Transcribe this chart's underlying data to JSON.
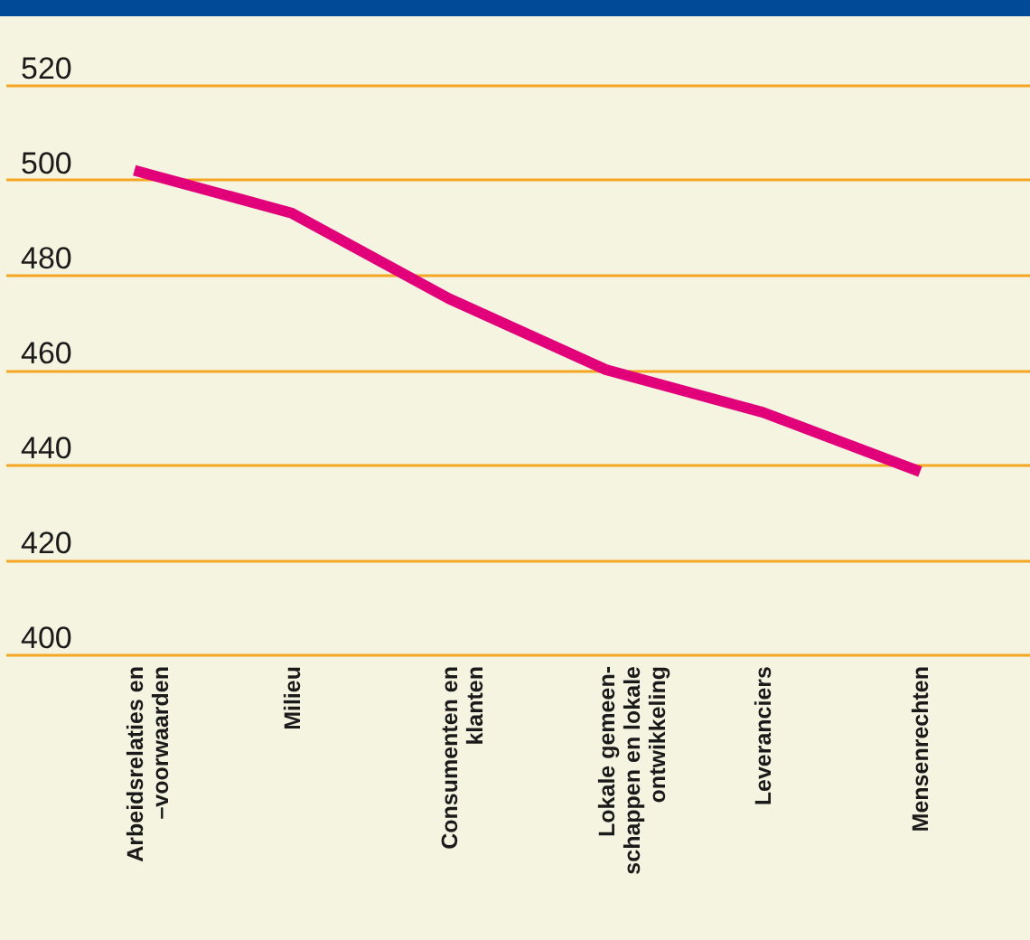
{
  "chart_data": {
    "type": "line",
    "categories": [
      "Arbeidsrelaties en\n–voorwaarden",
      "Milieu",
      "Consumenten en\nklanten",
      "Lokale gemeen-\nschappen en lokale\nontwikkeling",
      "Leveranciers",
      "Mensenrechten"
    ],
    "series": [
      {
        "color": "#e2007a",
        "values": [
          502,
          493,
          475,
          460,
          451,
          438.5
        ]
      }
    ],
    "ylim": [
      400,
      520
    ],
    "yticks": [
      400,
      420,
      440,
      460,
      480,
      500,
      520
    ],
    "grid": "y",
    "marker": "none",
    "line_style": "solid",
    "legend": false
  }
}
